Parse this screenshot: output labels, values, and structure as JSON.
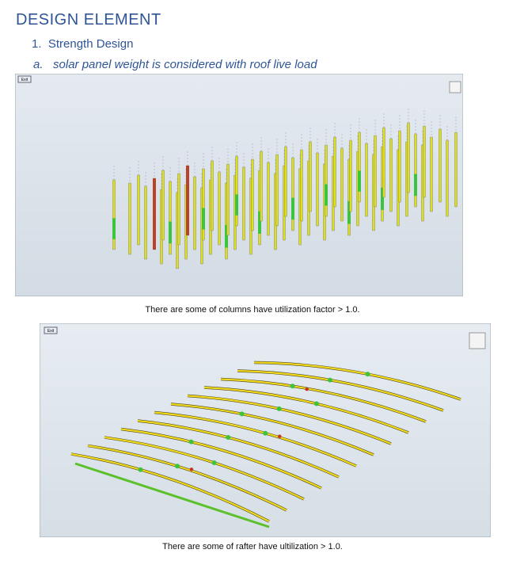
{
  "header": {
    "title": "DESIGN ELEMENT"
  },
  "list": {
    "marker": "1.",
    "text": "Strength Design"
  },
  "sublist": {
    "marker": "a.",
    "text": "solar panel weight is considered with roof live load"
  },
  "figures": [
    {
      "button": "Exit",
      "caption": "There are some of columns have utilization factor > 1.0."
    },
    {
      "button": "Exit",
      "caption": "There are some of rafter have ultilization > 1.0."
    }
  ]
}
